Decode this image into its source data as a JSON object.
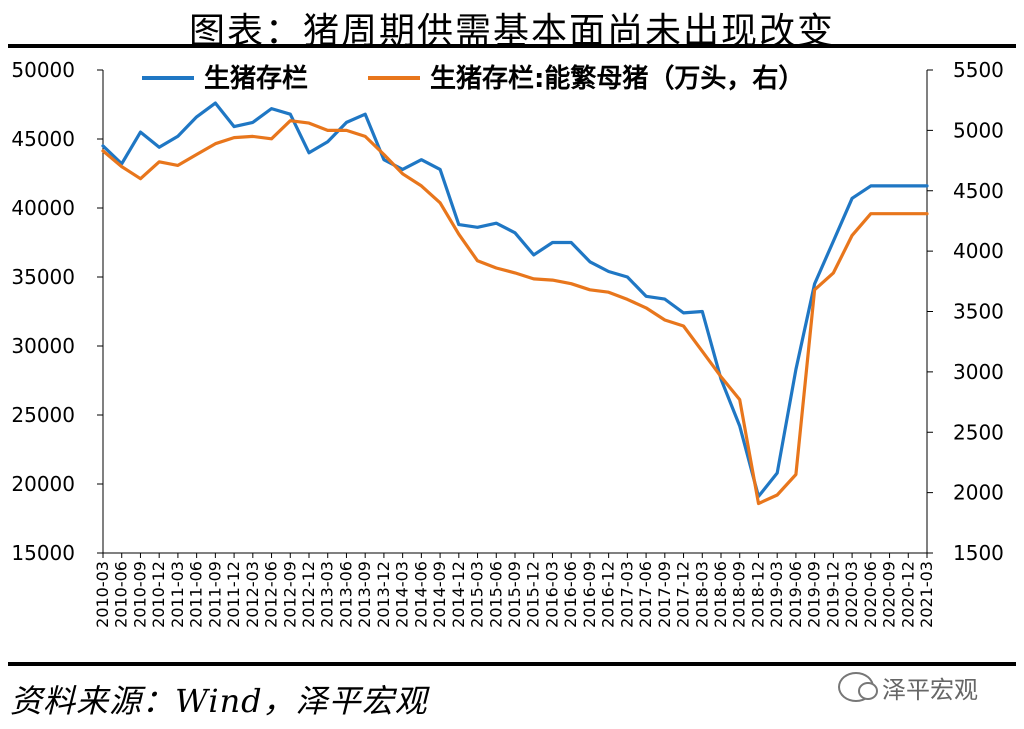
{
  "title": "图表：猪周期供需基本面尚未出现改变",
  "source": "资料来源：Wind，泽平宏观",
  "watermark": {
    "text": "泽平宏观",
    "icon": "wechat-icon"
  },
  "chart_data": {
    "type": "line",
    "x": [
      "2010-03",
      "2010-06",
      "2010-09",
      "2010-12",
      "2011-03",
      "2011-06",
      "2011-09",
      "2011-12",
      "2012-03",
      "2012-06",
      "2012-09",
      "2012-12",
      "2013-03",
      "2013-06",
      "2013-09",
      "2013-12",
      "2014-03",
      "2014-06",
      "2014-09",
      "2014-12",
      "2015-03",
      "2015-06",
      "2015-09",
      "2015-12",
      "2016-03",
      "2016-06",
      "2016-09",
      "2016-12",
      "2017-03",
      "2017-06",
      "2017-09",
      "2017-12",
      "2018-03",
      "2018-06",
      "2018-09",
      "2018-12",
      "2019-03",
      "2019-06",
      "2019-09",
      "2019-12",
      "2020-03",
      "2020-06",
      "2020-09",
      "2020-12",
      "2021-03"
    ],
    "x_tick_labels": [
      "2010-03",
      "2010-06",
      "2010-09",
      "2010-12",
      "2011-03",
      "2011-06",
      "2011-09",
      "2011-12",
      "2012-03",
      "2012-06",
      "2012-09",
      "2012-12",
      "2013-03",
      "2013-06",
      "2013-09",
      "2013-12",
      "2014-03",
      "2014-06",
      "2014-09",
      "2014-12",
      "2015-03",
      "2015-06",
      "2015-09",
      "2015-12",
      "2016-03",
      "2016-06",
      "2016-09",
      "2016-12",
      "2017-03",
      "2017-06",
      "2017-09",
      "2017-12",
      "2018-03",
      "2018-06",
      "2018-09",
      "2018-12",
      "2019-03",
      "2019-06",
      "2019-09",
      "2019-12",
      "2020-03",
      "2020-06",
      "2020-09",
      "2020-12",
      "2021-03"
    ],
    "y_left": {
      "min": 15000,
      "max": 50000,
      "ticks": [
        15000,
        20000,
        25000,
        30000,
        35000,
        40000,
        45000,
        50000
      ]
    },
    "y_right": {
      "min": 1500,
      "max": 5500,
      "ticks": [
        1500,
        2000,
        2500,
        3000,
        3500,
        4000,
        4500,
        5000,
        5500
      ]
    },
    "grid": false,
    "legend": "top",
    "series": [
      {
        "name": "生猪存栏",
        "axis": "left",
        "color": "#1F77C4",
        "values": [
          44500,
          43200,
          45500,
          44400,
          45200,
          46600,
          47600,
          45900,
          46200,
          47200,
          46800,
          44000,
          44800,
          46200,
          46800,
          43500,
          42800,
          43500,
          42800,
          38800,
          38600,
          38900,
          38200,
          36600,
          37500,
          37500,
          36100,
          35400,
          35000,
          33600,
          33400,
          32400,
          32500,
          27600,
          24200,
          19100,
          20800,
          28300,
          34500,
          37600,
          40700,
          41600,
          41600,
          41600,
          41600
        ]
      },
      {
        "name": "生猪存栏:能繁母猪（万头，右）",
        "axis": "right",
        "color": "#E8761C",
        "values": [
          4830,
          4700,
          4600,
          4740,
          4710,
          4800,
          4890,
          4940,
          4950,
          4930,
          5080,
          5060,
          5000,
          5000,
          4950,
          4800,
          4640,
          4540,
          4400,
          4140,
          3920,
          3860,
          3820,
          3770,
          3760,
          3730,
          3680,
          3660,
          3600,
          3530,
          3430,
          3380,
          3170,
          2960,
          2770,
          1910,
          1980,
          2150,
          3680,
          3820,
          4130,
          4310,
          4310,
          4310,
          4310
        ]
      }
    ]
  }
}
